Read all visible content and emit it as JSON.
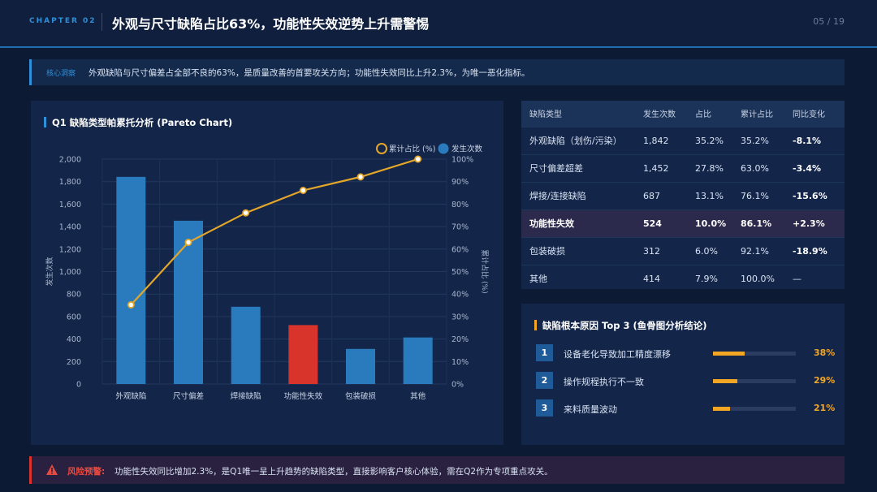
{
  "header": {
    "chapter": "CHAPTER 02",
    "title": "外观与尺寸缺陷占比63%，功能性失效逆势上升需警惕",
    "page": "05 / 19"
  },
  "insight": {
    "label": "核心洞察",
    "text": "外观缺陷与尺寸偏差占全部不良的63%，是质量改善的首要攻关方向；功能性失效同比上升2.3%，为唯一恶化指标。"
  },
  "chart_data": {
    "type": "bar",
    "title": "Q1 缺陷类型帕累托分析 (Pareto Chart)",
    "categories": [
      "外观缺陷",
      "尺寸偏差",
      "焊接缺陷",
      "功能性失效",
      "包装破损",
      "其他"
    ],
    "series": [
      {
        "name": "发生次数",
        "type": "bar",
        "axis": "left",
        "values": [
          1842,
          1452,
          687,
          524,
          312,
          414
        ]
      },
      {
        "name": "累计占比 (%)",
        "type": "line",
        "axis": "right",
        "values": [
          35.2,
          63.0,
          76.1,
          86.1,
          92.1,
          100.0
        ]
      }
    ],
    "ylabel": "发生次数",
    "y2label": "累计占比 (%)",
    "ylim": [
      0,
      2000
    ],
    "y2lim": [
      0,
      100
    ],
    "yticks": [
      "0",
      "200",
      "400",
      "600",
      "800",
      "1,000",
      "1,200",
      "1,400",
      "1,600",
      "1,800",
      "2,000"
    ],
    "y2ticks": [
      "0%",
      "10%",
      "20%",
      "30%",
      "40%",
      "50%",
      "60%",
      "70%",
      "80%",
      "90%",
      "100%"
    ],
    "highlight_index": 3,
    "colors": {
      "bar": "#2a7bbd",
      "highlight": "#d9342b",
      "line": "#e3a629"
    },
    "legend": "top-right",
    "grid": true
  },
  "table": {
    "headers": [
      "缺陷类型",
      "发生次数",
      "占比",
      "累计占比",
      "同比变化"
    ],
    "rows": [
      [
        "外观缺陷（划伤/污染）",
        "1,842",
        "35.2%",
        "35.2%",
        "-8.1%"
      ],
      [
        "尺寸偏差超差",
        "1,452",
        "27.8%",
        "63.0%",
        "-3.4%"
      ],
      [
        "焊接/连接缺陷",
        "687",
        "13.1%",
        "76.1%",
        "-15.6%"
      ],
      [
        "功能性失效",
        "524",
        "10.0%",
        "86.1%",
        "+2.3%"
      ],
      [
        "包装破损",
        "312",
        "6.0%",
        "92.1%",
        "-18.9%"
      ],
      [
        "其他",
        "414",
        "7.9%",
        "100.0%",
        "—"
      ]
    ]
  },
  "root_cause": {
    "title": "缺陷根本原因 Top 3 (鱼骨图分析结论)",
    "items": [
      {
        "num": "1",
        "text": "设备老化导致加工精度漂移",
        "pct": "38%",
        "value": 38
      },
      {
        "num": "2",
        "text": "操作规程执行不一致",
        "pct": "29%",
        "value": 29
      },
      {
        "num": "3",
        "text": "来料质量波动",
        "pct": "21%",
        "value": 21
      }
    ]
  },
  "risk": {
    "label": "风险预警:",
    "text": "功能性失效同比增加2.3%，是Q1唯一呈上升趋势的缺陷类型，直接影响客户核心体验，需在Q2作为专项重点攻关。"
  }
}
